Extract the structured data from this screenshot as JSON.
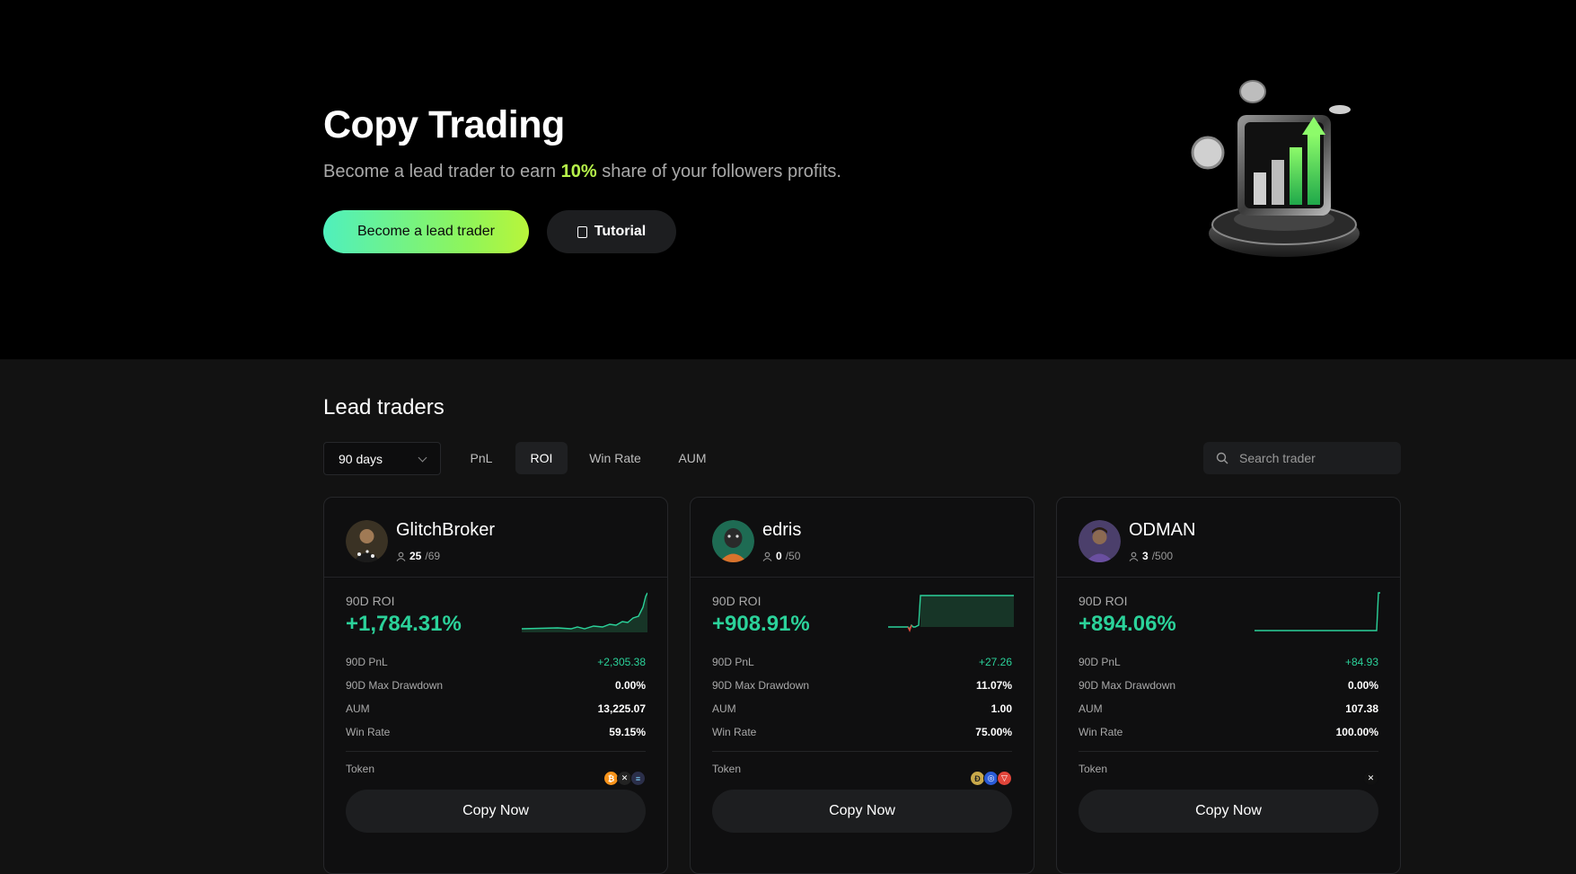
{
  "hero": {
    "title": "Copy Trading",
    "subtitle_before": "Become a lead trader to earn ",
    "subtitle_highlight": "10%",
    "subtitle_after": " share of your followers profits.",
    "primary_button": "Become a lead trader",
    "secondary_button": "Tutorial",
    "accent": "#b6f34a"
  },
  "traders_section": {
    "title": "Lead traders",
    "period": "90 days",
    "tabs": [
      "PnL",
      "ROI",
      "Win Rate",
      "AUM"
    ],
    "active_tab": "ROI",
    "search_placeholder": "Search trader"
  },
  "cards": [
    {
      "name": "GlitchBroker",
      "followers": "25",
      "followers_max": "/69",
      "roi_label": "90D ROI",
      "roi": "+1,784.31%",
      "rows": [
        {
          "label": "90D PnL",
          "value": "+2,305.38"
        },
        {
          "label": "90D Max Drawdown",
          "value": "0.00%"
        },
        {
          "label": "AUM",
          "value": "13,225.07"
        },
        {
          "label": "Win Rate",
          "value": "59.15%"
        }
      ],
      "token_label": "Token",
      "tokens": [
        "bitcoin-icon",
        "x-icon",
        "solana-icon"
      ],
      "copy_label": "Copy Now"
    },
    {
      "name": "edris",
      "followers": "0",
      "followers_max": "/50",
      "roi_label": "90D ROI",
      "roi": "+908.91%",
      "rows": [
        {
          "label": "90D PnL",
          "value": "+27.26"
        },
        {
          "label": "90D Max Drawdown",
          "value": "11.07%"
        },
        {
          "label": "AUM",
          "value": "1.00"
        },
        {
          "label": "Win Rate",
          "value": "75.00%"
        }
      ],
      "token_label": "Token",
      "tokens": [
        "doge-icon",
        "cardano-icon",
        "tron-icon"
      ],
      "copy_label": "Copy Now"
    },
    {
      "name": "ODMAN",
      "followers": "3",
      "followers_max": "/500",
      "roi_label": "90D ROI",
      "roi": "+894.06%",
      "rows": [
        {
          "label": "90D PnL",
          "value": "+84.93"
        },
        {
          "label": "90D Max Drawdown",
          "value": "0.00%"
        },
        {
          "label": "AUM",
          "value": "107.38"
        },
        {
          "label": "Win Rate",
          "value": "100.00%"
        }
      ],
      "token_label": "Token",
      "tokens": [
        "zk-icon"
      ],
      "copy_label": "Copy Now"
    }
  ],
  "colors": {
    "positive": "#2bd29a",
    "panel": "#0f0f10",
    "background": "#121212"
  }
}
